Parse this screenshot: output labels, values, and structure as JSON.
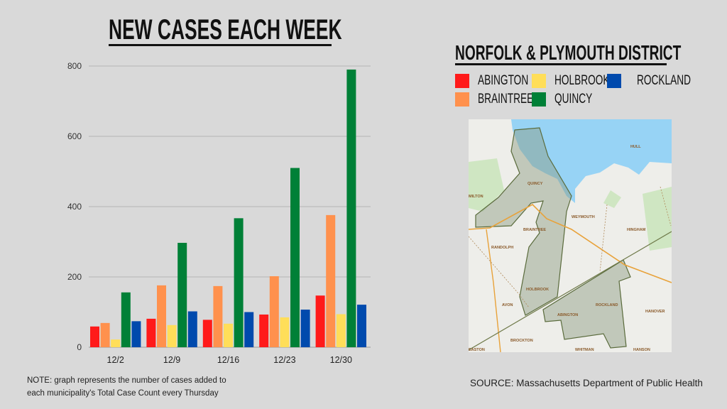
{
  "chart_data": {
    "type": "bar",
    "title": "NEW CASES EACH WEEK",
    "xlabel": "",
    "ylabel": "",
    "ylim": [
      0,
      800
    ],
    "yticks": [
      "0",
      "200",
      "400",
      "600",
      "800"
    ],
    "grid": true,
    "legend_placement": "right",
    "categories": [
      "12/2",
      "12/9",
      "12/16",
      "12/23",
      "12/30"
    ],
    "series": [
      {
        "name": "ABINGTON",
        "color": "#ff1a1a",
        "values": [
          59,
          81,
          78,
          93,
          147
        ]
      },
      {
        "name": "BRAINTREE",
        "color": "#ff914d",
        "values": [
          69,
          176,
          174,
          202,
          376
        ]
      },
      {
        "name": "HOLBROOK",
        "color": "#ffde59",
        "values": [
          22,
          63,
          67,
          85,
          94
        ]
      },
      {
        "name": "QUINCY",
        "color": "#008037",
        "values": [
          156,
          297,
          367,
          510,
          790
        ]
      },
      {
        "name": "ROCKLAND",
        "color": "#004aad",
        "values": [
          74,
          102,
          100,
          107,
          121
        ]
      }
    ]
  },
  "legend": {
    "title": "NORFOLK & PLYMOUTH DISTRICT"
  },
  "map": {
    "labels": [
      "QUINCY",
      "WEYMOUTH",
      "BRAINTREE",
      "HINGHAM",
      "RANDOLPH",
      "HOLBROOK",
      "AVON",
      "ROCKLAND",
      "ABINGTON",
      "HANOVER",
      "BROCKTON",
      "WHITMAN",
      "HANSON",
      "HULL",
      "MILTON",
      "EASTON"
    ]
  },
  "notes": {
    "line1": "NOTE: graph represents the number of cases added to",
    "line2": "each municipality's Total Case Count every Thursday"
  },
  "source": "SOURCE: Massachusetts Department of Public Health"
}
